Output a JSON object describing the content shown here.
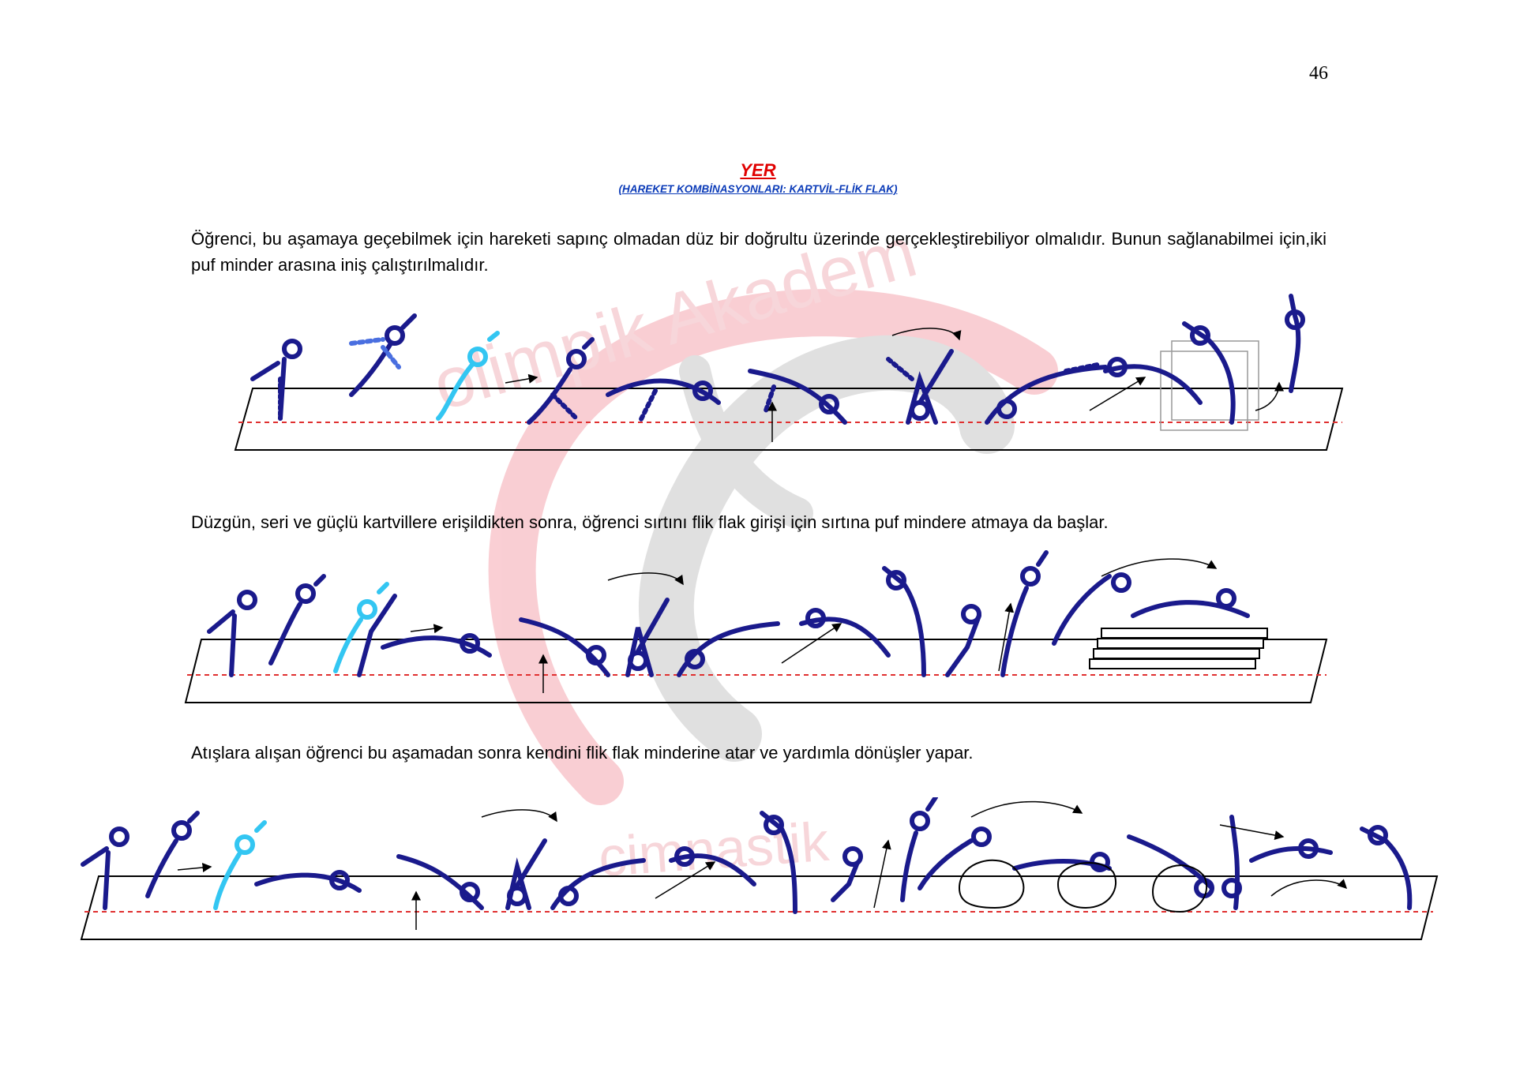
{
  "page": {
    "number": "46",
    "title": "YER",
    "subtitle": "(HAREKET KOMBİNASYONLARI: KARTVİL-FLİK FLAK)",
    "watermark_text": [
      "olimpik Akadem",
      "cimnastik"
    ]
  },
  "paragraphs": [
    "Öğrenci, bu aşamaya geçebilmek için hareketi sapınç olmadan düz bir doğrultu üzerinde gerçekleştirebiliyor olmalıdır. Bunun sağlanabilmei için,iki puf minder arasına iniş çalıştırılmalıdır.",
    "Düzgün, seri ve güçlü kartvillere erişildikten sonra, öğrenci sırtını flik flak girişi için sırtına puf mindere atmaya da başlar.",
    "Atışlara alışan öğrenci bu aşamadan sonra kendini flik flak minderine atar ve yardımla dönüşler yapar."
  ],
  "colors": {
    "title": "#e00000",
    "subtitle": "#0b3bb8",
    "figure": "#1a1a8c",
    "figure_highlight": "#33c6f2",
    "figure_dashed": "#4a6fe0",
    "head_accent": "#e8141c",
    "guide_line": "#e03030",
    "watermark_red": "#f5a7b0",
    "watermark_gray": "#c8c8c8"
  },
  "icons": [
    "gymnast-figure-icon",
    "arrow-icon",
    "curved-arrow-icon",
    "mat-icon",
    "box-icon"
  ]
}
